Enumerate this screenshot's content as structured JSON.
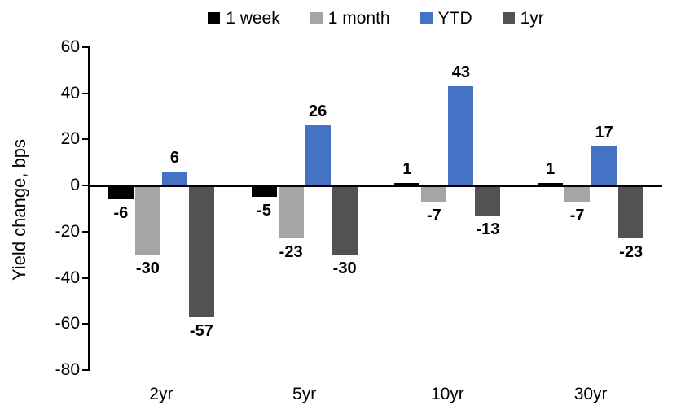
{
  "chart_data": {
    "type": "bar",
    "title": "",
    "ylabel": "Yield change, bps",
    "xlabel": "",
    "categories": [
      "2yr",
      "5yr",
      "10yr",
      "30yr"
    ],
    "series": [
      {
        "name": "1 week",
        "color": "#000000",
        "values": [
          -6,
          -5,
          1,
          1
        ]
      },
      {
        "name": "1 month",
        "color": "#A5A5A5",
        "values": [
          -30,
          -23,
          -7,
          -7
        ]
      },
      {
        "name": "YTD",
        "color": "#4472C4",
        "values": [
          6,
          26,
          43,
          17
        ]
      },
      {
        "name": "1yr",
        "color": "#525252",
        "values": [
          -57,
          -30,
          -13,
          -23
        ]
      }
    ],
    "data_labels": true,
    "ylim": [
      -80,
      60
    ],
    "yticks": [
      60,
      40,
      20,
      0,
      -20,
      -40,
      -60,
      -80
    ],
    "grid": false,
    "legend_position": "top",
    "axis_color": "#000000",
    "background_color": "#ffffff"
  }
}
